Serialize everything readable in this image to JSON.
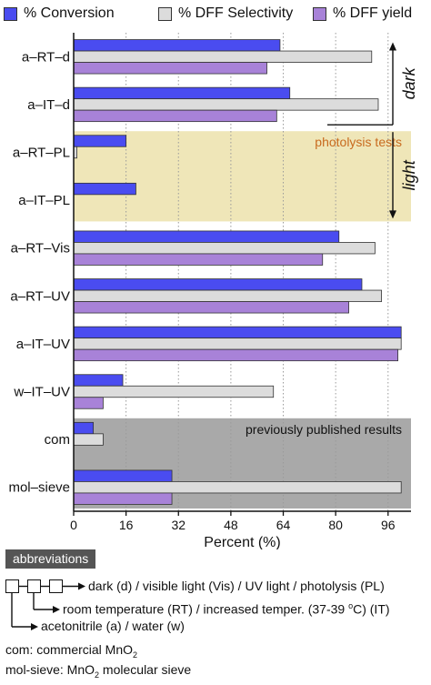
{
  "chart_data": {
    "type": "bar",
    "orientation": "horizontal",
    "categories": [
      "a–RT–d",
      "a–IT–d",
      "a–RT–PL",
      "a–IT–PL",
      "a–RT–Vis",
      "a–RT–UV",
      "a–IT–UV",
      "w–IT–UV",
      "com",
      "mol–sieve"
    ],
    "series": [
      {
        "name": "% Conversion",
        "color": "#4a4cf0",
        "values": [
          63,
          66,
          16,
          19,
          81,
          88,
          100,
          15,
          6,
          30
        ]
      },
      {
        "name": "% DFF Selectivity",
        "color": "#dcdcdc",
        "values": [
          91,
          93,
          1,
          0,
          92,
          94,
          100,
          61,
          9,
          100
        ]
      },
      {
        "name": "% DFF yield",
        "color": "#a882d8",
        "values": [
          59,
          62,
          0,
          0,
          76,
          84,
          99,
          9,
          0,
          30
        ]
      }
    ],
    "xlabel": "Percent (%)",
    "xticks": [
      0,
      16,
      32,
      48,
      64,
      80,
      96
    ],
    "xlim": [
      0,
      103
    ],
    "grid": "vertical dotted",
    "legend": "top",
    "regions": [
      {
        "label": "photolysis tests",
        "color": "#efe6b8",
        "label_color": "#c86a1e"
      },
      {
        "label": "previously published results",
        "color": "#a9a9a9",
        "label_color": "#111111"
      }
    ],
    "side_annotations": [
      "dark",
      "light"
    ]
  },
  "abbreviations": {
    "title": "abbreviations",
    "line1": "dark (d) / visible light (Vis) / UV light / photolysis (PL)",
    "line2_pre": "room temperature (RT) / increased temper. (37-39 ",
    "line2_sup": "o",
    "line2_post": "C) (IT)",
    "line3": "acetonitrile (a) / water (w)",
    "line4_pre": "com: commercial MnO",
    "line4_sub": "2",
    "line5_pre": "mol-sieve: MnO",
    "line5_sub": "2",
    "line5_post": " molecular sieve"
  }
}
